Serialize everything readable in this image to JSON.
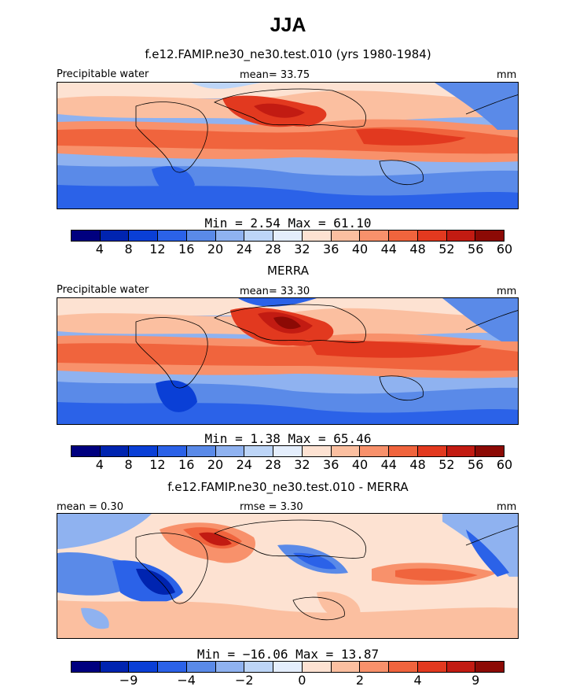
{
  "title": "JJA",
  "panels": [
    {
      "subtitle": "f.e12.FAMIP.ne30_ne30.test.010 (yrs 1980-1984)",
      "left_label": "Precipitable water",
      "center_label": "mean=   33.75",
      "right_label": "mm",
      "minmax": "Min =    2.54  Max =   61.10",
      "ticks": [
        "4",
        "8",
        "12",
        "16",
        "20",
        "24",
        "28",
        "32",
        "36",
        "40",
        "44",
        "48",
        "52",
        "56",
        "60"
      ]
    },
    {
      "subtitle": "MERRA",
      "left_label": "Precipitable water",
      "center_label": "mean=   33.30",
      "right_label": "mm",
      "minmax": "Min =    1.38  Max =   65.46",
      "ticks": [
        "4",
        "8",
        "12",
        "16",
        "20",
        "24",
        "28",
        "32",
        "36",
        "40",
        "44",
        "48",
        "52",
        "56",
        "60"
      ]
    },
    {
      "subtitle": "f.e12.FAMIP.ne30_ne30.test.010 - MERRA",
      "left_label": "mean =   0.30",
      "center_label": "rmse =    3.30",
      "right_label": "mm",
      "minmax": "Min = −16.06  Max =   13.87",
      "ticks": [
        "−9",
        "−4",
        "−2",
        "0",
        "2",
        "4",
        "9"
      ]
    }
  ],
  "colors": [
    "#00007f",
    "#0024b0",
    "#0a3fd6",
    "#2b62e8",
    "#5a8ae8",
    "#8fb2f0",
    "#bdd5f7",
    "#e4eefc",
    "#fde2d2",
    "#fbbfa0",
    "#f8916b",
    "#f0643d",
    "#e2391f",
    "#c21b12",
    "#8c0a05"
  ]
}
